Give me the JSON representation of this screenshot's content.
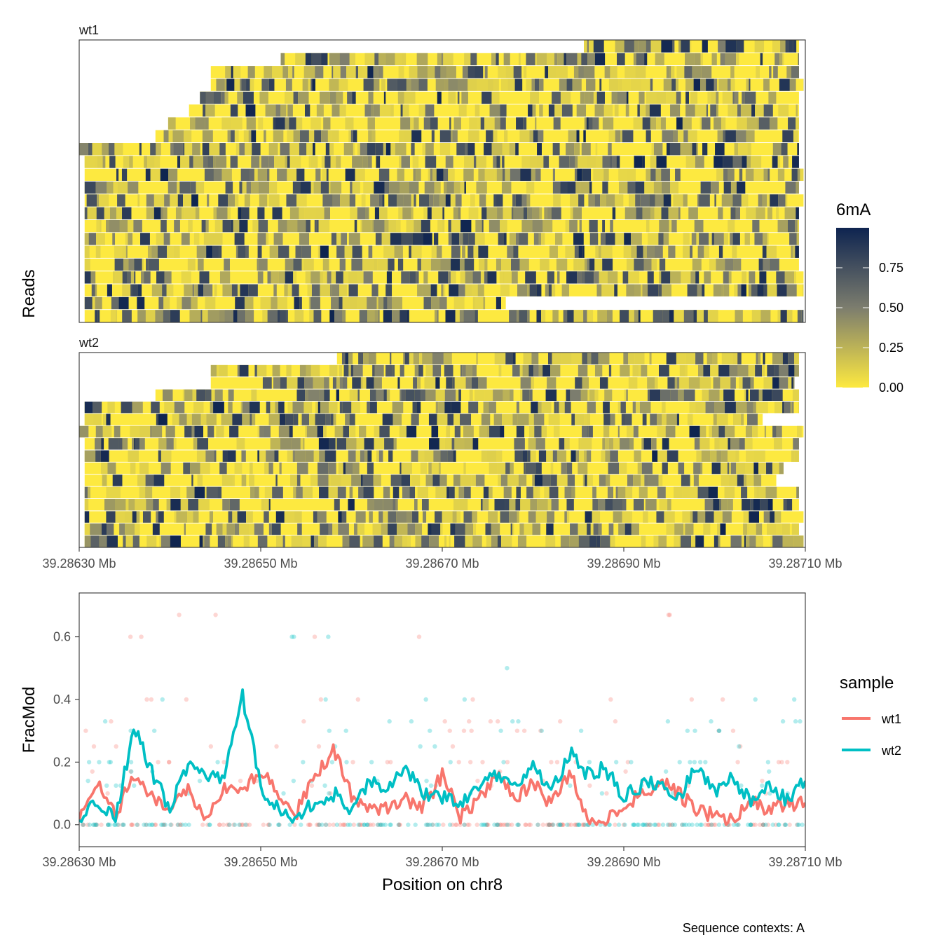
{
  "colors": {
    "wt1": "#F8766D",
    "wt2": "#00BFC4",
    "heat_low": "#FDE940",
    "heat_mid": "#7C7D6E",
    "heat_high": "#0E2450",
    "axis": "#333333",
    "tick_text": "#4D4D4D"
  },
  "chart_data": [
    {
      "type": "heatmap",
      "title": "",
      "ylabel": "Reads",
      "xlim": [
        39.2863,
        39.2871
      ],
      "x_ticks": [
        "39.28630 Mb",
        "39.28650 Mb",
        "39.28670 Mb",
        "39.28690 Mb",
        "39.28710 Mb"
      ],
      "x_tick_values": [
        39.2863,
        39.2865,
        39.2867,
        39.2869,
        39.2871
      ],
      "legend": {
        "title": "6mA",
        "position": "right",
        "range": [
          0,
          1
        ],
        "ticks": [
          "0.00",
          "0.25",
          "0.50",
          "0.75"
        ],
        "tick_values": [
          0,
          0.25,
          0.5,
          0.75
        ]
      },
      "panels": [
        {
          "name": "wt1",
          "reads": [
            {
              "start": 39.286856,
              "end": 39.287093,
              "seed": 11
            },
            {
              "start": 39.286522,
              "end": 39.287093,
              "seed": 12
            },
            {
              "start": 39.286445,
              "end": 39.287093,
              "seed": 13
            },
            {
              "start": 39.286445,
              "end": 39.287098,
              "seed": 14
            },
            {
              "start": 39.286433,
              "end": 39.287093,
              "seed": 15
            },
            {
              "start": 39.286421,
              "end": 39.287093,
              "seed": 16
            },
            {
              "start": 39.286398,
              "end": 39.287093,
              "seed": 17
            },
            {
              "start": 39.286384,
              "end": 39.287093,
              "seed": 18
            },
            {
              "start": 39.2863,
              "end": 39.287093,
              "seed": 19
            },
            {
              "start": 39.286306,
              "end": 39.287093,
              "seed": 20
            },
            {
              "start": 39.286306,
              "end": 39.287098,
              "seed": 21
            },
            {
              "start": 39.286306,
              "end": 39.287093,
              "seed": 22
            },
            {
              "start": 39.286306,
              "end": 39.287098,
              "seed": 23
            },
            {
              "start": 39.286306,
              "end": 39.287093,
              "seed": 24
            },
            {
              "start": 39.286306,
              "end": 39.287093,
              "seed": 25
            },
            {
              "start": 39.286306,
              "end": 39.287093,
              "seed": 26
            },
            {
              "start": 39.286306,
              "end": 39.287093,
              "seed": 27
            },
            {
              "start": 39.286306,
              "end": 39.287093,
              "seed": 28
            },
            {
              "start": 39.286306,
              "end": 39.287098,
              "seed": 29
            },
            {
              "start": 39.286306,
              "end": 39.287098,
              "seed": 30
            },
            {
              "start": 39.286306,
              "end": 39.28677,
              "seed": 31
            },
            {
              "start": 39.286306,
              "end": 39.287098,
              "seed": 32
            }
          ]
        },
        {
          "name": "wt2",
          "reads": [
            {
              "start": 39.286584,
              "end": 39.287093,
              "seed": 41
            },
            {
              "start": 39.286445,
              "end": 39.287093,
              "seed": 42
            },
            {
              "start": 39.286445,
              "end": 39.287088,
              "seed": 43
            },
            {
              "start": 39.286384,
              "end": 39.287093,
              "seed": 44
            },
            {
              "start": 39.286306,
              "end": 39.287093,
              "seed": 45
            },
            {
              "start": 39.286306,
              "end": 39.287053,
              "seed": 46
            },
            {
              "start": 39.2863,
              "end": 39.287098,
              "seed": 47
            },
            {
              "start": 39.286306,
              "end": 39.287093,
              "seed": 48
            },
            {
              "start": 39.286306,
              "end": 39.287093,
              "seed": 49
            },
            {
              "start": 39.286306,
              "end": 39.287076,
              "seed": 50
            },
            {
              "start": 39.286306,
              "end": 39.287068,
              "seed": 51
            },
            {
              "start": 39.286306,
              "end": 39.287093,
              "seed": 52
            },
            {
              "start": 39.286306,
              "end": 39.287093,
              "seed": 53
            },
            {
              "start": 39.286306,
              "end": 39.287098,
              "seed": 54
            },
            {
              "start": 39.286306,
              "end": 39.287093,
              "seed": 55
            },
            {
              "start": 39.286306,
              "end": 39.287098,
              "seed": 56
            }
          ]
        }
      ]
    },
    {
      "type": "line",
      "title": "",
      "xlabel": "Position on chr8",
      "ylabel": "FracMod",
      "xlim": [
        39.2863,
        39.2871
      ],
      "ylim": [
        -0.07,
        0.74
      ],
      "x_ticks": [
        "39.28630 Mb",
        "39.28650 Mb",
        "39.28670 Mb",
        "39.28690 Mb",
        "39.28710 Mb"
      ],
      "x_tick_values": [
        39.2863,
        39.2865,
        39.2867,
        39.2869,
        39.2871
      ],
      "y_ticks": [
        "0.0",
        "0.2",
        "0.4",
        "0.6"
      ],
      "y_tick_values": [
        0,
        0.2,
        0.4,
        0.6
      ],
      "legend": {
        "title": "sample",
        "position": "right"
      },
      "caption": "Sequence contexts: A",
      "series": [
        {
          "name": "wt1",
          "x": [
            39.2863,
            39.28632,
            39.28634,
            39.28636,
            39.28638,
            39.2864,
            39.28642,
            39.28644,
            39.28646,
            39.28648,
            39.2865,
            39.28652,
            39.28654,
            39.28656,
            39.28658,
            39.2866,
            39.28662,
            39.28664,
            39.28666,
            39.28668,
            39.2867,
            39.28672,
            39.28674,
            39.28676,
            39.28678,
            39.2868,
            39.28682,
            39.28684,
            39.28686,
            39.28688,
            39.2869,
            39.28692,
            39.28694,
            39.28696,
            39.28698,
            39.287,
            39.28702,
            39.28704,
            39.28706,
            39.28708,
            39.2871
          ],
          "values": [
            0.02,
            0.14,
            0.03,
            0.16,
            0.09,
            0.04,
            0.11,
            0.03,
            0.12,
            0.1,
            0.18,
            0.08,
            0.04,
            0.16,
            0.24,
            0.09,
            0.04,
            0.05,
            0.08,
            0.06,
            0.16,
            0.02,
            0.08,
            0.17,
            0.08,
            0.14,
            0.06,
            0.17,
            0.02,
            0.01,
            0.06,
            0.1,
            0.14,
            0.1,
            0.05,
            0.03,
            0.02,
            0.08,
            0.05,
            0.06,
            0.07
          ]
        },
        {
          "name": "wt2",
          "x": [
            39.2863,
            39.28632,
            39.28634,
            39.28636,
            39.28638,
            39.2864,
            39.28642,
            39.28644,
            39.28646,
            39.28648,
            39.2865,
            39.28652,
            39.28654,
            39.28656,
            39.28658,
            39.2866,
            39.28662,
            39.28664,
            39.28666,
            39.28668,
            39.2867,
            39.28672,
            39.28674,
            39.28676,
            39.28678,
            39.2868,
            39.28682,
            39.28684,
            39.28686,
            39.28688,
            39.2869,
            39.28692,
            39.28694,
            39.28696,
            39.28698,
            39.287,
            39.28702,
            39.28704,
            39.28706,
            39.28708,
            39.2871
          ],
          "values": [
            0.02,
            0.07,
            0.01,
            0.31,
            0.17,
            0.05,
            0.2,
            0.15,
            0.15,
            0.41,
            0.12,
            0.05,
            0.01,
            0.08,
            0.1,
            0.05,
            0.14,
            0.12,
            0.18,
            0.1,
            0.09,
            0.06,
            0.12,
            0.16,
            0.12,
            0.2,
            0.1,
            0.23,
            0.16,
            0.18,
            0.09,
            0.12,
            0.14,
            0.08,
            0.19,
            0.11,
            0.15,
            0.07,
            0.13,
            0.08,
            0.14
          ]
        }
      ],
      "points_note_free": true
    }
  ]
}
